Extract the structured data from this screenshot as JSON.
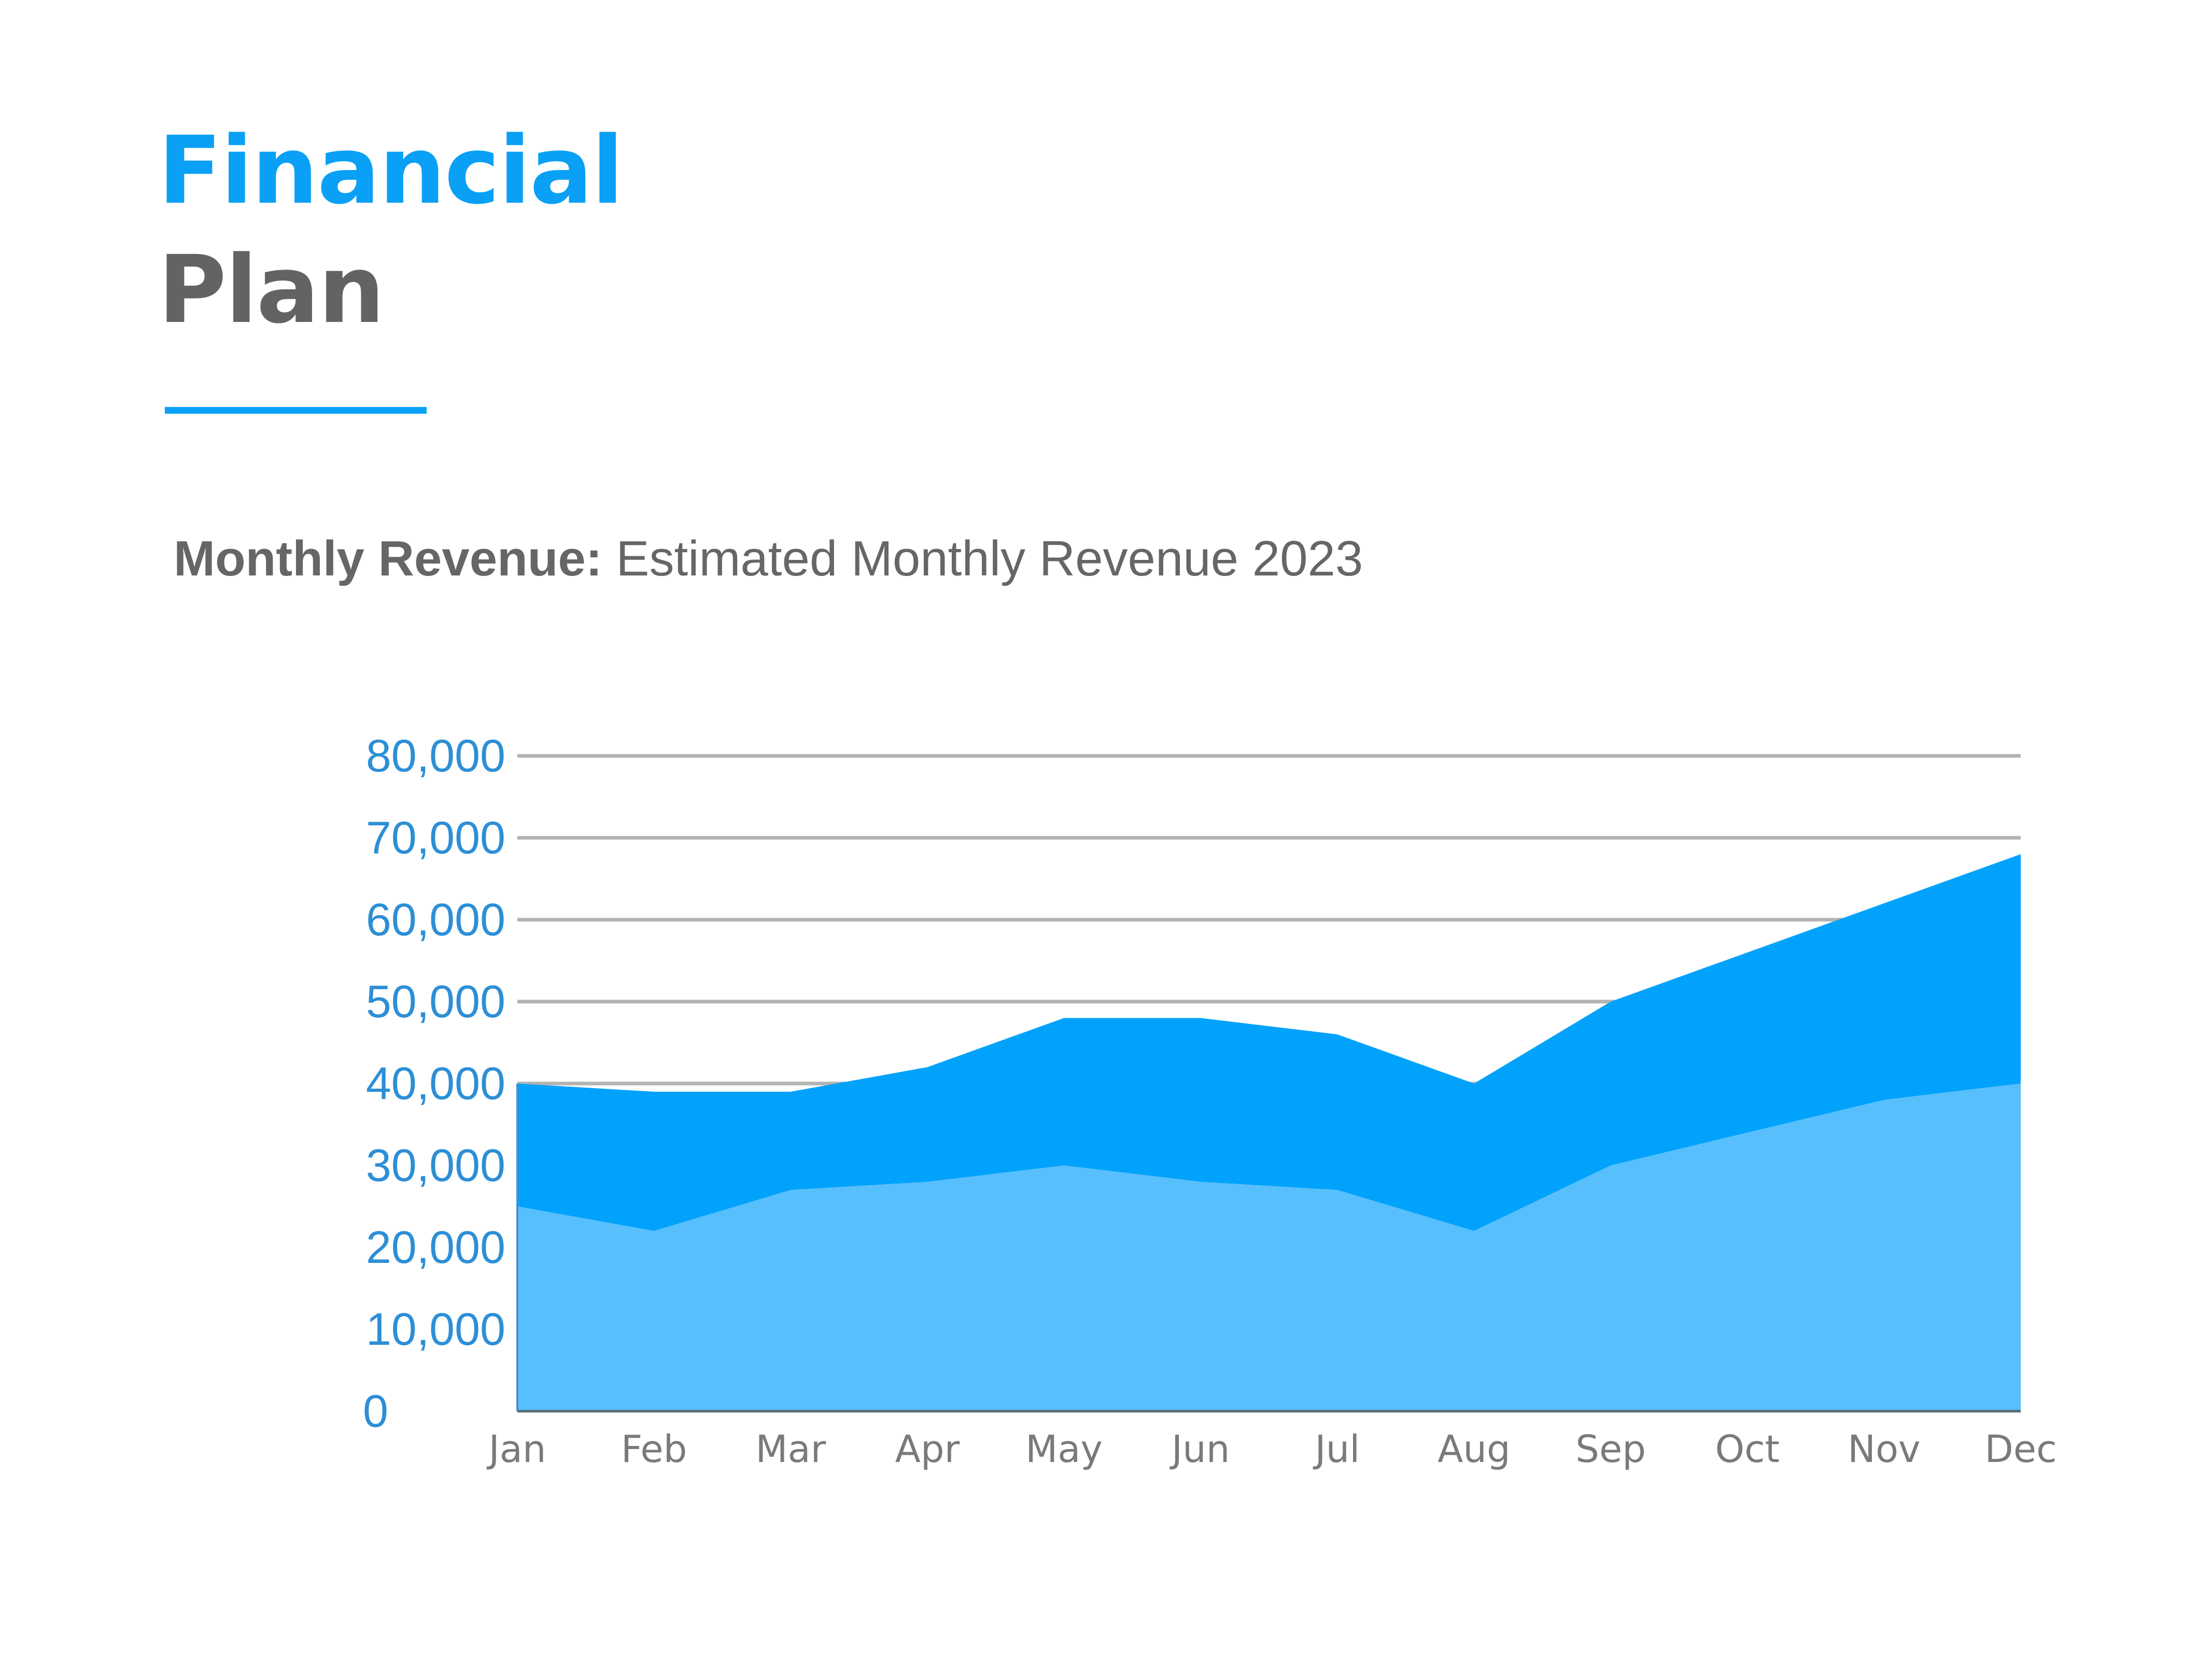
{
  "header": {
    "title_line1": "Financial",
    "title_line2": "Plan",
    "subtitle_bold": "Monthly Revenue:",
    "subtitle_rest": " Estimated Monthly Revenue 2023"
  },
  "colors": {
    "accent": "#0aa0f5",
    "title_gray": "#636363",
    "tick_label": "#2d8fd6",
    "series_lower": "#57bffc",
    "series_upper": "#00a2fc",
    "grid": "#b3b3b3"
  },
  "chart_data": {
    "type": "area",
    "stacked": true,
    "categories": [
      "Jan",
      "Feb",
      "Mar",
      "Apr",
      "May",
      "Jun",
      "Jul",
      "Aug",
      "Sep",
      "Oct",
      "Nov",
      "Dec"
    ],
    "series": [
      {
        "values": [
          25000,
          22000,
          27000,
          28000,
          30000,
          28000,
          27000,
          22000,
          30000,
          34000,
          38000,
          40000
        ]
      },
      {
        "values": [
          15000,
          17000,
          12000,
          14000,
          18000,
          20000,
          19000,
          18000,
          20000,
          22000,
          24000,
          28000
        ]
      }
    ],
    "ylim": [
      0,
      80000
    ],
    "yticks": [
      0,
      10000,
      20000,
      30000,
      40000,
      50000,
      60000,
      70000,
      80000
    ],
    "ytick_labels": [
      "0",
      "10,000",
      "20,000",
      "30,000",
      "40,000",
      "50,000",
      "60,000",
      "70,000",
      "80,000"
    ],
    "grid": true,
    "title": "",
    "xlabel": "",
    "ylabel": ""
  }
}
